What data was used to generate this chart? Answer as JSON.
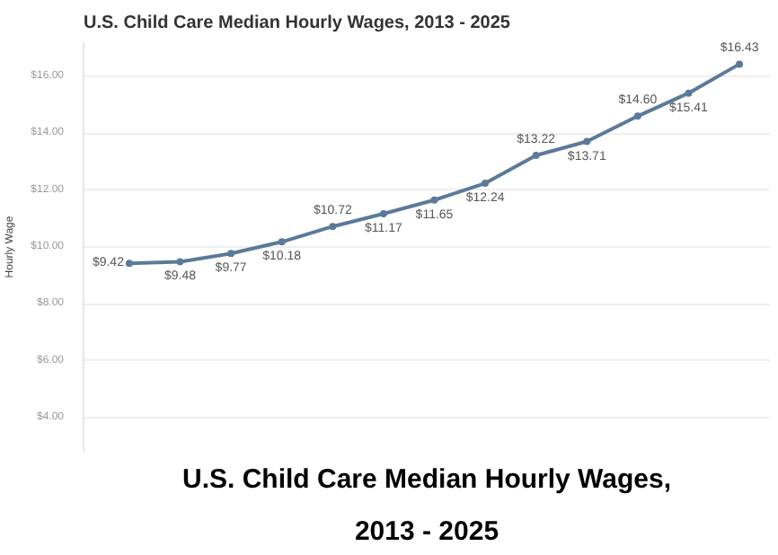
{
  "chart_data": {
    "type": "line",
    "title": "U.S. Child Care Median Hourly Wages, 2013 - 2025",
    "ylabel": "Hourly Wage",
    "annotations": [
      "U.S. Child Care Median Hourly Wages,\n2013 - 2025"
    ],
    "categories": [
      null,
      null,
      null,
      null,
      null,
      null,
      null,
      null,
      null,
      null,
      null,
      null,
      null
    ],
    "series": [
      {
        "color": "#5b7a99",
        "values": [
          9.42,
          9.48,
          9.77,
          10.18,
          10.72,
          11.17,
          11.65,
          12.24,
          13.22,
          13.71,
          14.6,
          15.41,
          16.43
        ],
        "value_labels": [
          "$9.42",
          "$9.48",
          "$9.77",
          "$10.18",
          "$10.72",
          "$11.17",
          "$11.65",
          "$12.24",
          "$13.22",
          "$13.71",
          "$14.60",
          "$15.41",
          "$16.43"
        ]
      }
    ],
    "ylim": [
      2.8,
      17.2
    ],
    "yticks": [
      {
        "value": 4,
        "label": "$4.00"
      },
      {
        "value": 6,
        "label": "$6.00"
      },
      {
        "value": 8,
        "label": "$8.00"
      },
      {
        "value": 10,
        "label": "$10.00"
      },
      {
        "value": 12,
        "label": "$12.00"
      },
      {
        "value": 14,
        "label": "$14.00"
      },
      {
        "value": 16,
        "label": "$16.00"
      }
    ],
    "grid": "y",
    "marker": "circle",
    "line_style": "solid",
    "tick_labels": "y"
  }
}
